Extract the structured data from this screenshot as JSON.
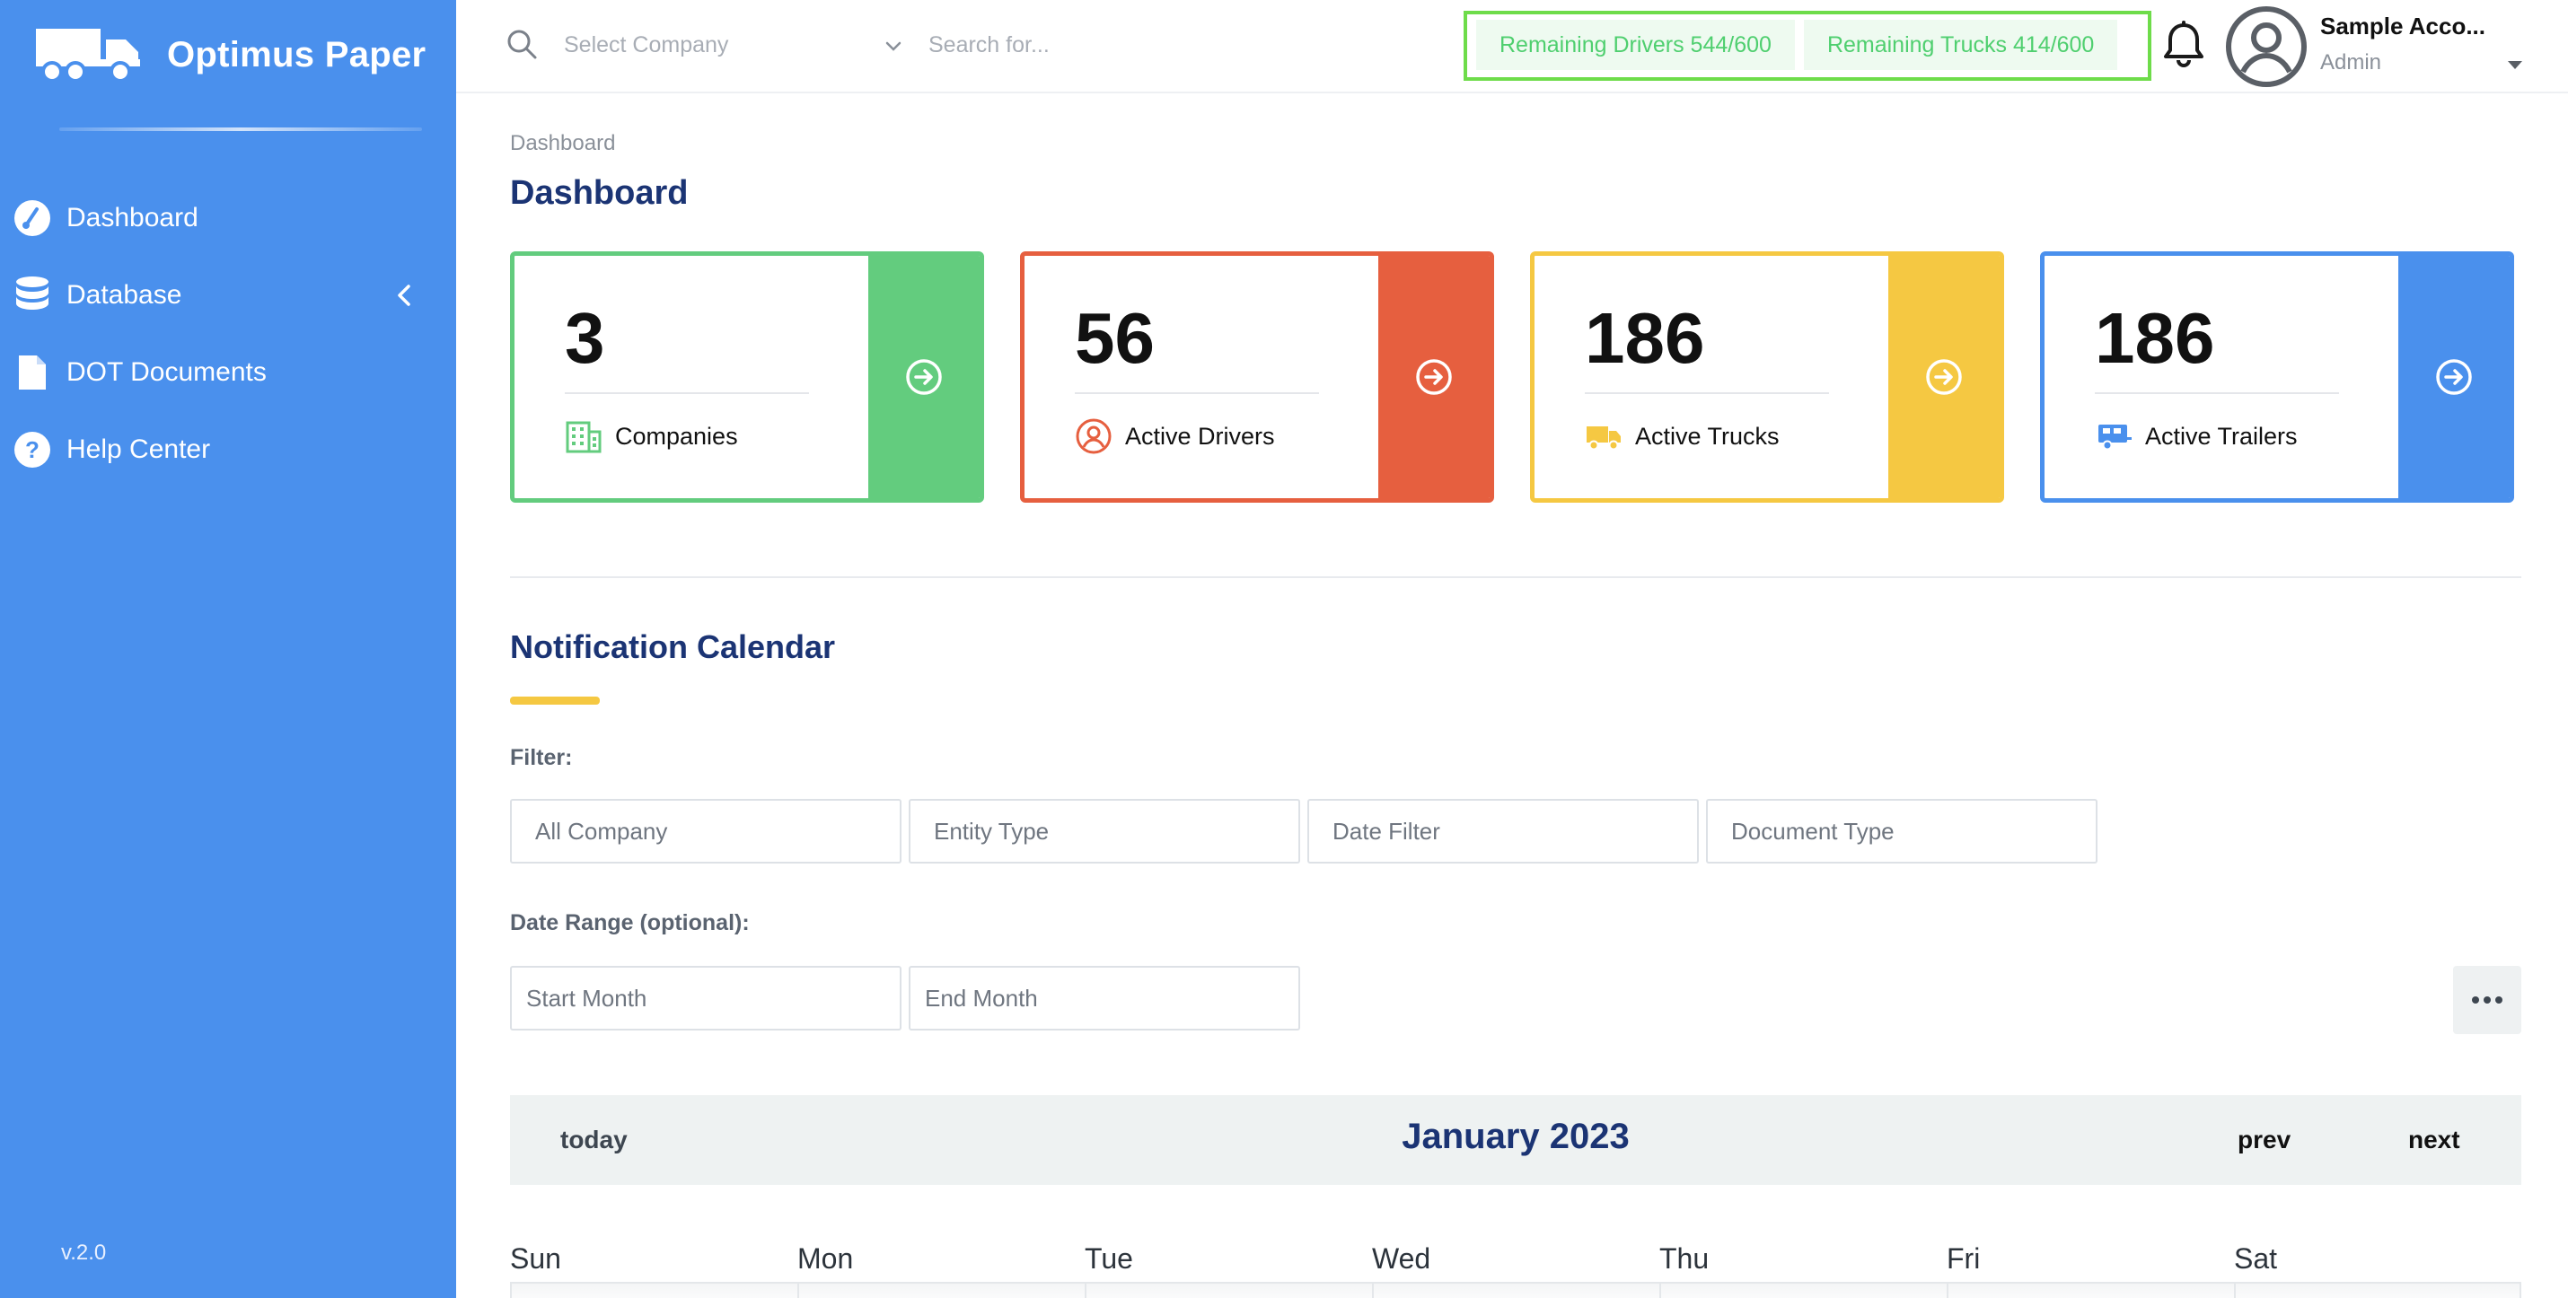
{
  "brand": {
    "name": "Optimus Paper",
    "version": "v.2.0"
  },
  "sidebar": {
    "items": [
      {
        "label": "Dashboard",
        "icon": "gauge-icon"
      },
      {
        "label": "Database",
        "icon": "database-icon"
      },
      {
        "label": "DOT Documents",
        "icon": "document-icon"
      },
      {
        "label": "Help Center",
        "icon": "help-icon"
      }
    ]
  },
  "header": {
    "company_placeholder": "Select Company",
    "search_placeholder": "Search for...",
    "remaining_drivers": "Remaining Drivers 544/600",
    "remaining_trucks": "Remaining Trucks 414/600",
    "account_name": "Sample Acco...",
    "account_role": "Admin"
  },
  "page": {
    "breadcrumb": "Dashboard",
    "title": "Dashboard"
  },
  "cards": [
    {
      "count": "3",
      "label": "Companies",
      "icon": "building-icon",
      "color": "#63cc7e"
    },
    {
      "count": "56",
      "label": "Active Drivers",
      "icon": "user-circle-icon",
      "color": "#e65f3f"
    },
    {
      "count": "186",
      "label": "Active Trucks",
      "icon": "truck-icon",
      "color": "#f5c842"
    },
    {
      "count": "186",
      "label": "Active Trailers",
      "icon": "trailer-icon",
      "color": "#4a90ed"
    }
  ],
  "calendar": {
    "section_title": "Notification Calendar",
    "filter_label": "Filter:",
    "filters": [
      "All Company",
      "Entity Type",
      "Date Filter",
      "Document Type"
    ],
    "range_label": "Date Range (optional):",
    "start_placeholder": "Start Month",
    "end_placeholder": "End Month",
    "today": "today",
    "month": "January 2023",
    "prev": "prev",
    "next": "next",
    "weekdays": [
      "Sun",
      "Mon",
      "Tue",
      "Wed",
      "Thu",
      "Fri",
      "Sat"
    ]
  },
  "colors": {
    "sidebar": "#4a90ed",
    "title": "#1b3474",
    "quota_border": "#6edc4a",
    "quota_text": "#4fcf6f"
  }
}
